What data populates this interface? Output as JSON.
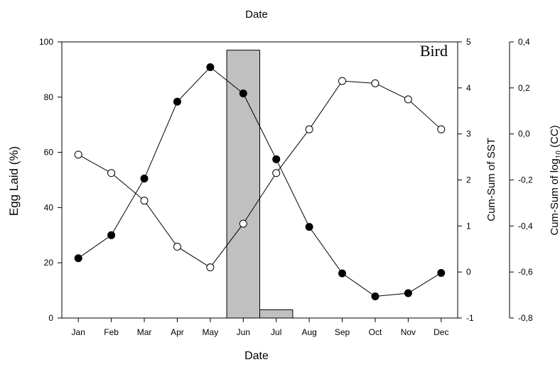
{
  "chart_data": {
    "type": "line",
    "top_label": "Date",
    "panel_label": "Bird",
    "xlabel": "Date",
    "categories": [
      "Jan",
      "Feb",
      "Mar",
      "Apr",
      "May",
      "Jun",
      "Jul",
      "Aug",
      "Sep",
      "Oct",
      "Nov",
      "Dec"
    ],
    "y_left": {
      "label": "Egg Laid (%)",
      "range": [
        0,
        100
      ],
      "ticks": [
        "0",
        "20",
        "40",
        "60",
        "80",
        "100"
      ]
    },
    "y_right1": {
      "label": "Cum-Sum of SST",
      "range": [
        -1,
        5
      ],
      "ticks": [
        "-1",
        "0",
        "1",
        "2",
        "3",
        "4",
        "5"
      ]
    },
    "y_right2": {
      "label_prefix": "Cum-Sum of log",
      "label_sub": "10",
      "label_suffix": " (CC)",
      "range": [
        -0.8,
        0.4
      ],
      "ticks": [
        "-0,8",
        "-0,6",
        "-0,4",
        "-0,2",
        "0,0",
        "0,2",
        "0,4"
      ]
    },
    "bars": {
      "axis": "left",
      "values": [
        0,
        0,
        0,
        0,
        0,
        97,
        3,
        0,
        0,
        0,
        0,
        0
      ]
    },
    "series": [
      {
        "axis": "right1",
        "marker": "filled",
        "values": [
          0.3,
          0.8,
          2.03,
          3.7,
          4.45,
          3.88,
          2.45,
          0.98,
          -0.03,
          -0.53,
          -0.46,
          -0.02
        ]
      },
      {
        "axis": "right2",
        "marker": "open",
        "values": [
          -0.09,
          -0.17,
          -0.29,
          -0.49,
          -0.58,
          -0.39,
          -0.17,
          0.02,
          0.23,
          0.22,
          0.15,
          0.02
        ]
      }
    ],
    "grid": false
  }
}
